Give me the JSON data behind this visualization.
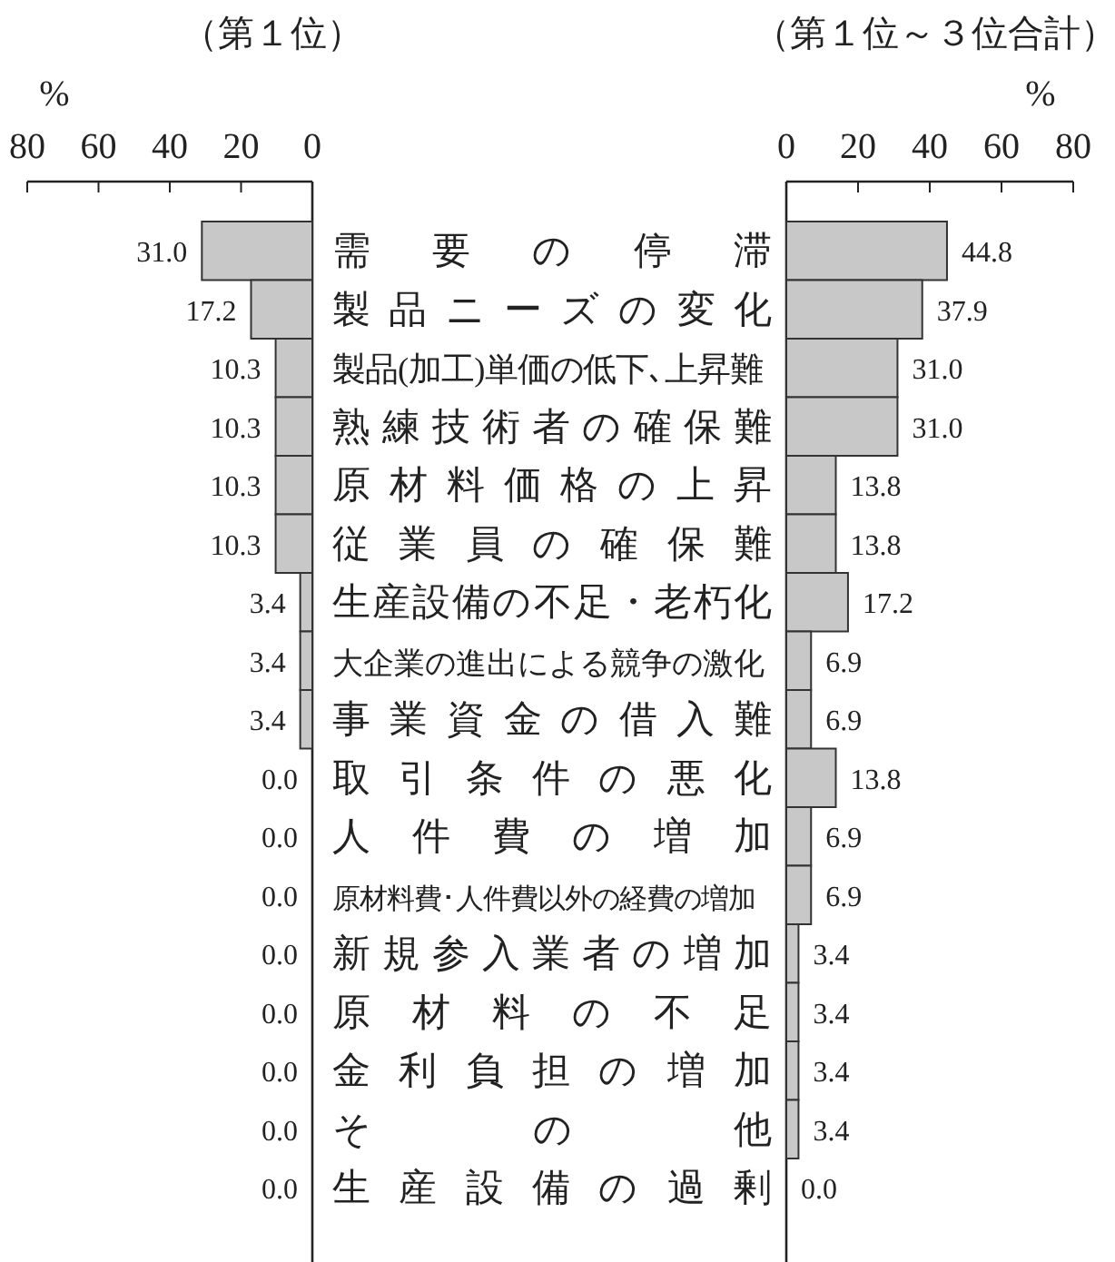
{
  "chart_data": [
    {
      "type": "bar",
      "orientation": "horizontal",
      "title": "（第１位）",
      "xlabel": "%",
      "xlim": [
        80,
        0
      ],
      "xticks": [
        80,
        60,
        40,
        20,
        0
      ],
      "color": "#c8c8c8",
      "categories": [
        "需要の停滞",
        "製品ニーズの変化",
        "製品(加工)単価の低下､上昇難",
        "熟練技術者の確保難",
        "原材料価格の上昇",
        "従業員の確保難",
        "生産設備の不足・老朽化",
        "大企業の進出による競争の激化",
        "事業資金の借入難",
        "取引条件の悪化",
        "人件費の増加",
        "原材料費･人件費以外の経費の増加",
        "新規参入業者の増加",
        "原材料の不足",
        "金利負担の増加",
        "その他",
        "生産設備の過剰"
      ],
      "values": [
        31.0,
        17.2,
        10.3,
        10.3,
        10.3,
        10.3,
        3.4,
        3.4,
        3.4,
        0.0,
        0.0,
        0.0,
        0.0,
        0.0,
        0.0,
        0.0,
        0.0
      ],
      "value_labels": [
        "31.0",
        "17.2",
        "10.3",
        "10.3",
        "10.3",
        "10.3",
        "3.4",
        "3.4",
        "3.4",
        "0.0",
        "0.0",
        "0.0",
        "0.0",
        "0.0",
        "0.0",
        "0.0",
        "0.0"
      ]
    },
    {
      "type": "bar",
      "orientation": "horizontal",
      "title": "（第１位～３位合計）",
      "xlabel": "%",
      "xlim": [
        0,
        80
      ],
      "xticks": [
        0,
        20,
        40,
        60,
        80
      ],
      "color": "#c8c8c8",
      "tick_labels": "x",
      "categories": [
        null,
        null,
        null,
        null,
        null,
        null,
        null,
        null,
        null,
        null,
        null,
        null,
        null,
        null,
        null,
        null,
        null
      ],
      "values": [
        44.8,
        37.9,
        31.0,
        31.0,
        13.8,
        13.8,
        17.2,
        6.9,
        6.9,
        13.8,
        6.9,
        6.9,
        3.4,
        3.4,
        3.4,
        3.4,
        0.0
      ],
      "value_labels": [
        "44.8",
        "37.9",
        "31.0",
        "31.0",
        "13.8",
        "13.8",
        "17.2",
        "6.9",
        "6.9",
        "13.8",
        "6.9",
        "6.9",
        "3.4",
        "3.4",
        "3.4",
        "3.4",
        "0.0"
      ]
    }
  ]
}
